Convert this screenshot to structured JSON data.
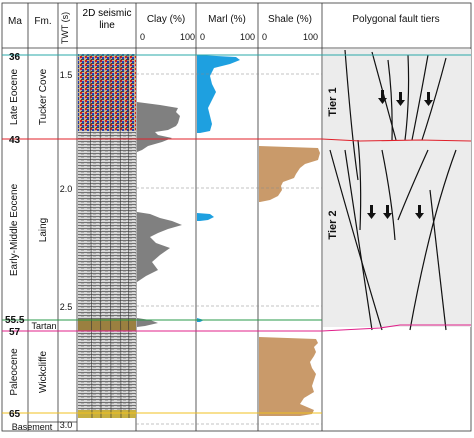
{
  "headers": {
    "ma": "Ma",
    "fm": "Fm.",
    "twt": "TWT (s)",
    "seismic": "2D seismic line",
    "clay": "Clay (%)",
    "marl": "Marl (%)",
    "shale": "Shale (%)",
    "faults": "Polygonal fault tiers"
  },
  "scale_labels": {
    "zero": "0",
    "hundred": "100"
  },
  "ages": [
    "36",
    "43",
    "55.5",
    "57",
    "65"
  ],
  "epochs": [
    "Late Eocene",
    "Early-Middle Eocene",
    "Paleocene"
  ],
  "formations": [
    "Tucker Cove",
    "Laing",
    "Tartan",
    "Wickcliffe",
    "Basement"
  ],
  "twt_ticks": [
    "1.5",
    "2.0",
    "2.5",
    "3.0"
  ],
  "tiers": [
    "Tier 1",
    "Tier 2"
  ],
  "colors": {
    "clay": "#808080",
    "marl": "#1ea0e0",
    "shale": "#c99a6a",
    "horizon_36": "#2aa8a8",
    "horizon_43": "#e0202a",
    "horizon_55_5": "#2a9a4a",
    "horizon_57": "#e0208a",
    "horizon_65": "#f0c020"
  }
}
